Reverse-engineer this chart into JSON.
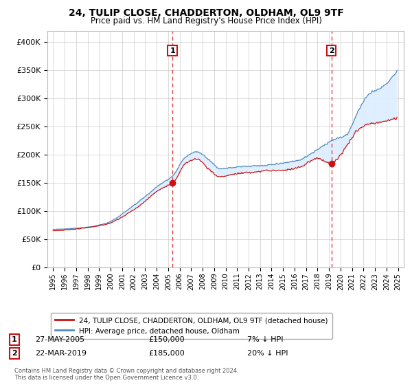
{
  "title": "24, TULIP CLOSE, CHADDERTON, OLDHAM, OL9 9TF",
  "subtitle": "Price paid vs. HM Land Registry's House Price Index (HPI)",
  "ylim": [
    0,
    420000
  ],
  "yticks": [
    0,
    50000,
    100000,
    150000,
    200000,
    250000,
    300000,
    350000,
    400000
  ],
  "transaction1": {
    "date": "27-MAY-2005",
    "price": 150000,
    "label": "1",
    "hpi_diff": "7% ↓ HPI",
    "year": 2005.38
  },
  "transaction2": {
    "date": "22-MAR-2019",
    "price": 185000,
    "label": "2",
    "hpi_diff": "20% ↓ HPI",
    "year": 2019.21
  },
  "legend_line1": "24, TULIP CLOSE, CHADDERTON, OLDHAM, OL9 9TF (detached house)",
  "legend_line2": "HPI: Average price, detached house, Oldham",
  "footer1": "Contains HM Land Registry data © Crown copyright and database right 2024.",
  "footer2": "This data is licensed under the Open Government Licence v3.0.",
  "hpi_color": "#5588bb",
  "price_color": "#cc1111",
  "fill_color": "#ddeeff",
  "bg_color": "#ffffff",
  "grid_color": "#cccccc",
  "vline_color": "#dd4444",
  "box_color": "#cc1111"
}
